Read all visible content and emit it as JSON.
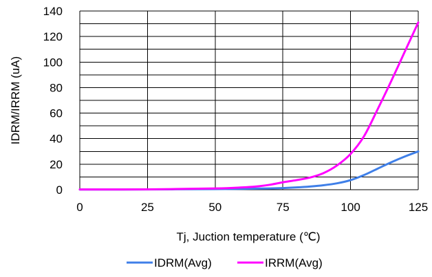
{
  "chart_data": {
    "type": "line",
    "xlabel": "Tj, Juction temperature (℃)",
    "ylabel": "IDRM/IRRM (uA)",
    "xlim": [
      0,
      125
    ],
    "ylim": [
      0,
      140
    ],
    "xticks": [
      0,
      25,
      50,
      75,
      100,
      125
    ],
    "yticks": [
      0,
      20,
      40,
      60,
      80,
      100,
      120,
      140
    ],
    "grid": true,
    "legend_position": "bottom",
    "series": [
      {
        "name": "IDRM(Avg)",
        "color": "#3f7fe8",
        "x": [
          0,
          25,
          50,
          60,
          70,
          75,
          80,
          85,
          90,
          95,
          100,
          105,
          110,
          115,
          120,
          125
        ],
        "y": [
          0.1,
          0.2,
          0.5,
          0.7,
          1.0,
          1.3,
          1.8,
          2.5,
          3.5,
          5.0,
          7.5,
          11.5,
          16.5,
          21.5,
          26.0,
          30.0
        ]
      },
      {
        "name": "IRRM(Avg)",
        "color": "#ff00ff",
        "x": [
          0,
          25,
          50,
          60,
          65,
          70,
          75,
          80,
          85,
          90,
          95,
          100,
          105,
          110,
          115,
          120,
          125
        ],
        "y": [
          0.2,
          0.3,
          1.0,
          1.8,
          2.5,
          3.8,
          5.8,
          7.5,
          9.5,
          13.0,
          19.0,
          28.0,
          42.0,
          63.0,
          85.0,
          108.0,
          131.0
        ]
      }
    ]
  }
}
